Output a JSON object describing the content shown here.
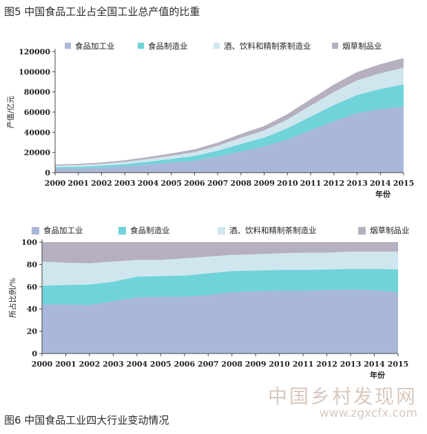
{
  "captions": {
    "top": "图5 中国食品工业占全国工业总产值的比重",
    "bottom": "图6 中国食品工业四大行业变动情况"
  },
  "watermark": {
    "text": "中国乡村发现网",
    "url": "www.zgxcfx.com"
  },
  "colors": {
    "food_processing": "#a9b8da",
    "food_manufacturing": "#6fd3d9",
    "beverage": "#cfe6ef",
    "tobacco": "#b6afbf"
  },
  "chart_data": [
    {
      "type": "area",
      "stacked": true,
      "x": [
        2000,
        2001,
        2002,
        2003,
        2004,
        2005,
        2006,
        2007,
        2008,
        2009,
        2010,
        2011,
        2012,
        2013,
        2014,
        2015
      ],
      "xlabel": "年份",
      "ylabel": "产值/亿元",
      "ylim": [
        0,
        120000
      ],
      "yticks": [
        0,
        20000,
        40000,
        60000,
        80000,
        100000,
        120000
      ],
      "legend_position": "top",
      "series": [
        {
          "name": "食品加工业",
          "color": "#a9b8da",
          "values": [
            4000,
            4300,
            5000,
            6200,
            8000,
            10000,
            12000,
            16000,
            21000,
            26000,
            33000,
            42000,
            51000,
            59000,
            63000,
            65500
          ]
        },
        {
          "name": "食品制造业",
          "color": "#6fd3d9",
          "values": [
            1300,
            1500,
            1800,
            2200,
            2800,
            3600,
            4500,
            5800,
            7500,
            8800,
            11000,
            13500,
            16000,
            18000,
            20000,
            22000
          ]
        },
        {
          "name": "酒、饮料和精制茶制造业",
          "color": "#cfe6ef",
          "values": [
            1600,
            1700,
            1900,
            2200,
            2600,
            3200,
            3800,
            4800,
            6000,
            7000,
            8800,
            11000,
            13000,
            14500,
            15500,
            16500
          ]
        },
        {
          "name": "烟草制品业",
          "color": "#b6afbf",
          "values": [
            1100,
            1200,
            1400,
            1700,
            2000,
            2300,
            2700,
            3200,
            3800,
            4400,
            5200,
            6300,
            7300,
            8200,
            9000,
            9500
          ]
        }
      ]
    },
    {
      "type": "area",
      "stacked": true,
      "x": [
        2000,
        2001,
        2002,
        2003,
        2004,
        2005,
        2006,
        2007,
        2008,
        2009,
        2010,
        2011,
        2012,
        2013,
        2014,
        2015
      ],
      "xlabel": "年份",
      "ylabel": "所占比例/%",
      "ylim": [
        0,
        100
      ],
      "yticks": [
        0,
        20,
        40,
        60,
        80,
        100
      ],
      "legend_position": "top",
      "series": [
        {
          "name": "食品加工业",
          "color": "#a9b8da",
          "values": [
            44,
            44,
            43.5,
            47,
            50.5,
            51,
            51,
            52.5,
            55,
            56,
            56.5,
            56.5,
            57,
            57.5,
            57,
            55
          ]
        },
        {
          "name": "食品制造业",
          "color": "#6fd3d9",
          "values": [
            17,
            17.5,
            18.5,
            17.5,
            18.5,
            18.5,
            19,
            19.5,
            19,
            18.5,
            18.5,
            18.5,
            18.5,
            18.5,
            19,
            20.5
          ]
        },
        {
          "name": "酒、饮料和精制茶制造业",
          "color": "#cfe6ef",
          "values": [
            21.5,
            20,
            19,
            18,
            15,
            14.5,
            15.5,
            15,
            14.5,
            14.5,
            15,
            15.5,
            15,
            15.5,
            15.5,
            16
          ]
        },
        {
          "name": "烟草制品业",
          "color": "#b6afbf",
          "values": [
            17.5,
            18.5,
            19,
            17.5,
            16,
            16,
            14.5,
            13,
            11.5,
            11,
            10,
            9.5,
            9.5,
            8.5,
            8.5,
            8.5
          ]
        }
      ]
    }
  ]
}
